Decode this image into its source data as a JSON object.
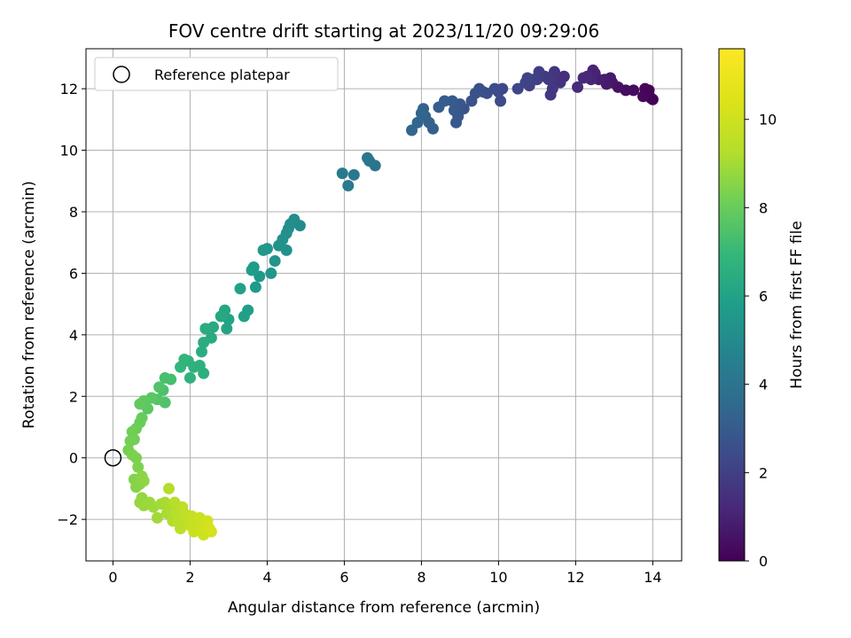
{
  "chart_data": {
    "type": "scatter",
    "title": "FOV centre drift starting at 2023/11/20 09:29:06",
    "xlabel": "Angular distance from reference (arcmin)",
    "ylabel": "Rotation from reference (arcmin)",
    "xlim": [
      -0.7,
      14.75
    ],
    "ylim": [
      -3.35,
      13.3
    ],
    "xticks": [
      0,
      2,
      4,
      6,
      8,
      10,
      12,
      14
    ],
    "yticks": [
      -2,
      0,
      2,
      4,
      6,
      8,
      10,
      12
    ],
    "grid": true,
    "legend": {
      "position": "top-left",
      "entries": [
        "Reference platepar"
      ]
    },
    "reference_point": {
      "x": 0,
      "y": 0
    },
    "colorbar": {
      "label": "Hours from first FF file",
      "colormap": "viridis",
      "range": [
        0,
        11.6
      ],
      "ticks": [
        0,
        2,
        4,
        6,
        8,
        10
      ]
    },
    "points": [
      [
        14.0,
        11.65,
        0.0
      ],
      [
        13.95,
        11.7,
        0.05
      ],
      [
        13.9,
        11.95,
        0.1
      ],
      [
        13.8,
        12.0,
        0.15
      ],
      [
        13.75,
        11.75,
        0.2
      ],
      [
        13.5,
        11.95,
        0.3
      ],
      [
        13.3,
        11.95,
        0.4
      ],
      [
        13.1,
        12.05,
        0.5
      ],
      [
        12.95,
        12.2,
        0.6
      ],
      [
        12.9,
        12.35,
        0.7
      ],
      [
        12.8,
        12.15,
        0.75
      ],
      [
        12.75,
        12.3,
        0.8
      ],
      [
        12.6,
        12.3,
        0.9
      ],
      [
        12.5,
        12.5,
        1.0
      ],
      [
        12.45,
        12.6,
        1.05
      ],
      [
        12.4,
        12.3,
        1.1
      ],
      [
        12.3,
        12.4,
        1.15
      ],
      [
        12.2,
        12.35,
        1.2
      ],
      [
        12.05,
        12.05,
        1.3
      ],
      [
        11.7,
        12.4,
        1.4
      ],
      [
        11.6,
        12.2,
        1.5
      ],
      [
        11.5,
        12.3,
        1.55
      ],
      [
        11.45,
        12.55,
        1.6
      ],
      [
        11.4,
        12.0,
        1.65
      ],
      [
        11.35,
        11.8,
        1.7
      ],
      [
        11.3,
        12.3,
        1.75
      ],
      [
        11.2,
        12.4,
        1.8
      ],
      [
        11.05,
        12.55,
        1.9
      ],
      [
        11.0,
        12.3,
        1.95
      ],
      [
        10.9,
        12.3,
        2.0
      ],
      [
        10.8,
        12.1,
        2.05
      ],
      [
        10.75,
        12.35,
        2.1
      ],
      [
        10.7,
        12.2,
        2.15
      ],
      [
        10.5,
        12.0,
        2.2
      ],
      [
        10.1,
        12.0,
        2.3
      ],
      [
        10.05,
        11.6,
        2.35
      ],
      [
        10.0,
        11.9,
        2.4
      ],
      [
        9.9,
        12.0,
        2.45
      ],
      [
        9.7,
        11.85,
        2.5
      ],
      [
        9.6,
        11.9,
        2.55
      ],
      [
        9.5,
        12.0,
        2.6
      ],
      [
        9.4,
        11.85,
        2.65
      ],
      [
        9.3,
        11.6,
        2.7
      ],
      [
        9.1,
        11.35,
        2.75
      ],
      [
        9.0,
        11.5,
        2.8
      ],
      [
        8.95,
        11.1,
        2.85
      ],
      [
        8.9,
        10.9,
        2.9
      ],
      [
        8.85,
        11.3,
        2.95
      ],
      [
        8.8,
        11.6,
        3.0
      ],
      [
        8.6,
        11.6,
        3.05
      ],
      [
        8.45,
        11.4,
        3.1
      ],
      [
        8.3,
        10.7,
        3.15
      ],
      [
        8.2,
        10.9,
        3.2
      ],
      [
        8.1,
        11.1,
        3.25
      ],
      [
        8.05,
        11.35,
        3.3
      ],
      [
        8.0,
        11.2,
        3.35
      ],
      [
        7.9,
        10.9,
        3.4
      ],
      [
        7.75,
        10.65,
        3.45
      ],
      [
        6.8,
        9.5,
        4.0
      ],
      [
        6.65,
        9.65,
        4.05
      ],
      [
        6.6,
        9.75,
        4.1
      ],
      [
        6.25,
        9.2,
        4.2
      ],
      [
        6.1,
        8.85,
        4.25
      ],
      [
        5.95,
        9.25,
        4.3
      ],
      [
        4.85,
        7.55,
        5.0
      ],
      [
        4.7,
        7.75,
        5.05
      ],
      [
        4.6,
        7.6,
        5.1
      ],
      [
        4.55,
        7.45,
        5.15
      ],
      [
        4.5,
        7.3,
        5.2
      ],
      [
        4.5,
        6.75,
        5.25
      ],
      [
        4.4,
        7.1,
        5.3
      ],
      [
        4.3,
        6.9,
        5.35
      ],
      [
        4.2,
        6.4,
        5.4
      ],
      [
        4.1,
        6.0,
        5.45
      ],
      [
        4.0,
        6.8,
        5.5
      ],
      [
        3.9,
        6.75,
        5.55
      ],
      [
        3.8,
        5.9,
        5.6
      ],
      [
        3.7,
        5.55,
        5.65
      ],
      [
        3.65,
        6.2,
        5.7
      ],
      [
        3.6,
        6.1,
        5.75
      ],
      [
        3.5,
        4.8,
        5.85
      ],
      [
        3.4,
        4.6,
        5.9
      ],
      [
        3.3,
        5.5,
        5.95
      ],
      [
        3.0,
        4.5,
        6.05
      ],
      [
        2.95,
        4.2,
        6.1
      ],
      [
        2.9,
        4.8,
        6.15
      ],
      [
        2.8,
        4.6,
        6.2
      ],
      [
        2.6,
        4.25,
        6.3
      ],
      [
        2.55,
        3.9,
        6.35
      ],
      [
        2.4,
        4.2,
        6.4
      ],
      [
        2.35,
        3.75,
        6.45
      ],
      [
        2.3,
        3.45,
        6.5
      ],
      [
        2.35,
        2.75,
        6.55
      ],
      [
        2.25,
        3.0,
        6.6
      ],
      [
        2.1,
        2.95,
        6.65
      ],
      [
        2.0,
        2.6,
        6.7
      ],
      [
        1.95,
        3.15,
        6.75
      ],
      [
        1.85,
        3.2,
        6.8
      ],
      [
        1.75,
        2.95,
        6.85
      ],
      [
        1.5,
        2.55,
        7.3
      ],
      [
        1.35,
        2.6,
        7.35
      ],
      [
        1.3,
        2.2,
        7.4
      ],
      [
        1.35,
        1.8,
        7.5
      ],
      [
        1.2,
        2.3,
        7.55
      ],
      [
        1.15,
        1.9,
        7.6
      ],
      [
        1.0,
        1.95,
        7.7
      ],
      [
        0.9,
        1.6,
        7.75
      ],
      [
        0.8,
        1.85,
        7.8
      ],
      [
        0.7,
        1.75,
        7.85
      ],
      [
        0.75,
        1.3,
        7.95
      ],
      [
        0.7,
        1.15,
        8.0
      ],
      [
        0.6,
        0.95,
        8.05
      ],
      [
        0.55,
        0.6,
        8.1
      ],
      [
        0.5,
        0.85,
        8.15
      ],
      [
        0.45,
        0.55,
        8.2
      ],
      [
        0.4,
        0.25,
        8.25
      ],
      [
        0.5,
        0.1,
        8.3
      ],
      [
        0.6,
        0.0,
        8.35
      ],
      [
        0.65,
        -0.3,
        8.4
      ],
      [
        0.55,
        -0.7,
        8.45
      ],
      [
        0.6,
        -0.95,
        8.5
      ],
      [
        0.7,
        -0.85,
        8.55
      ],
      [
        0.75,
        -0.6,
        8.6
      ],
      [
        0.8,
        -0.75,
        8.65
      ],
      [
        0.75,
        -1.3,
        8.7
      ],
      [
        0.7,
        -1.45,
        8.75
      ],
      [
        0.8,
        -1.55,
        8.8
      ],
      [
        0.95,
        -1.45,
        8.85
      ],
      [
        1.05,
        -1.6,
        8.9
      ],
      [
        1.15,
        -1.95,
        8.95
      ],
      [
        1.25,
        -1.5,
        9.0
      ],
      [
        1.35,
        -1.45,
        9.05
      ],
      [
        1.4,
        -1.8,
        9.1
      ],
      [
        1.5,
        -1.6,
        9.15
      ],
      [
        1.55,
        -2.05,
        9.2
      ],
      [
        1.45,
        -1.0,
        9.25
      ],
      [
        1.6,
        -1.45,
        9.3
      ],
      [
        1.65,
        -1.8,
        9.35
      ],
      [
        1.7,
        -2.1,
        9.4
      ],
      [
        1.75,
        -2.3,
        9.45
      ],
      [
        1.8,
        -1.6,
        9.5
      ],
      [
        1.85,
        -2.0,
        9.55
      ],
      [
        1.9,
        -1.85,
        9.6
      ],
      [
        2.0,
        -2.2,
        9.7
      ],
      [
        2.05,
        -1.9,
        9.75
      ],
      [
        2.1,
        -2.4,
        9.8
      ],
      [
        2.2,
        -2.15,
        9.85
      ],
      [
        2.25,
        -1.95,
        9.9
      ],
      [
        2.3,
        -2.35,
        9.95
      ],
      [
        2.35,
        -2.5,
        10.0
      ],
      [
        2.4,
        -2.2,
        10.05
      ],
      [
        2.45,
        -2.05,
        10.1
      ],
      [
        2.5,
        -2.3,
        10.15
      ],
      [
        2.55,
        -2.4,
        10.2
      ]
    ]
  }
}
